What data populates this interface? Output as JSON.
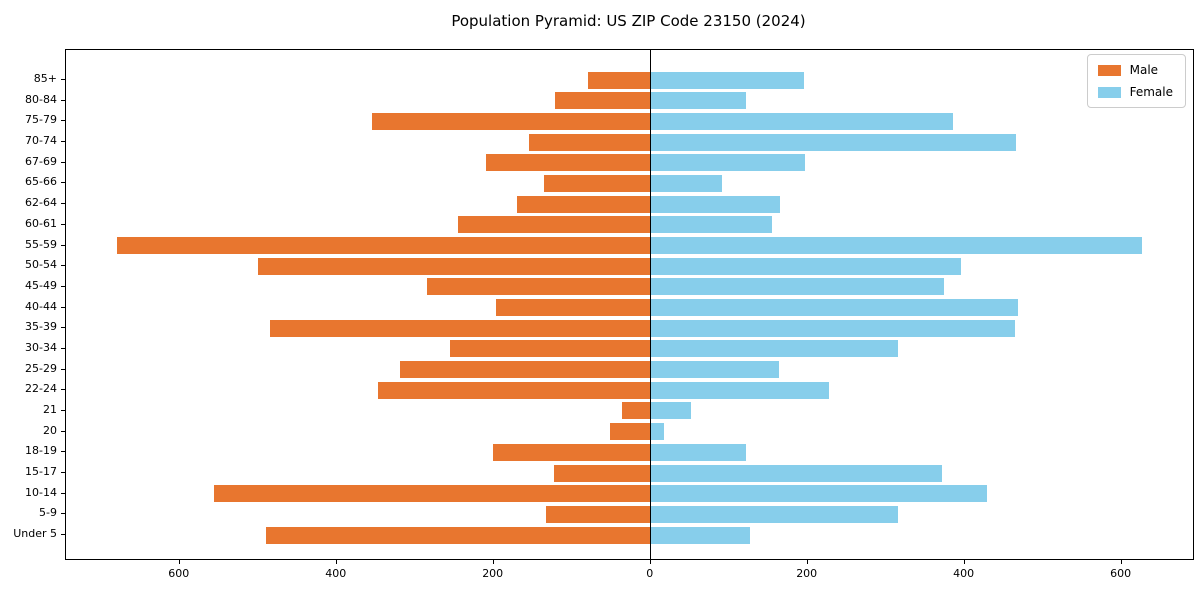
{
  "chart_data": {
    "type": "bar",
    "variant": "population-pyramid",
    "title": "Population Pyramid: US ZIP Code 23150 (2024)",
    "orientation": "horizontal",
    "categories": [
      "85+",
      "80-84",
      "75-79",
      "70-74",
      "67-69",
      "65-66",
      "62-64",
      "60-61",
      "55-59",
      "50-54",
      "45-49",
      "40-44",
      "35-39",
      "30-34",
      "25-29",
      "22-24",
      "21",
      "20",
      "18-19",
      "15-17",
      "10-14",
      "5-9",
      "Under 5"
    ],
    "series": [
      {
        "name": "Male",
        "color": "#e8762f",
        "side": "left",
        "values": [
          80,
          122,
          355,
          155,
          210,
          136,
          170,
          246,
          680,
          500,
          285,
          197,
          485,
          256,
          320,
          348,
          36,
          52,
          201,
          123,
          556,
          133,
          490
        ]
      },
      {
        "name": "Female",
        "color": "#87ceeb",
        "side": "right",
        "values": [
          196,
          122,
          385,
          466,
          197,
          91,
          165,
          154,
          626,
          396,
          374,
          468,
          464,
          315,
          164,
          227,
          52,
          17,
          122,
          371,
          429,
          315,
          126
        ]
      }
    ],
    "xlim": [
      -745,
      691
    ],
    "x_tick_values": [
      -600,
      -400,
      -200,
      0,
      200,
      400,
      600
    ],
    "x_tick_labels": [
      "600",
      "400",
      "200",
      "0",
      "200",
      "400",
      "600"
    ],
    "xlabel": "",
    "ylabel": "",
    "grid": false,
    "legend_position": "upper right",
    "zero_line": true,
    "background_color": "#ffffff",
    "spine_color": "#000000"
  }
}
